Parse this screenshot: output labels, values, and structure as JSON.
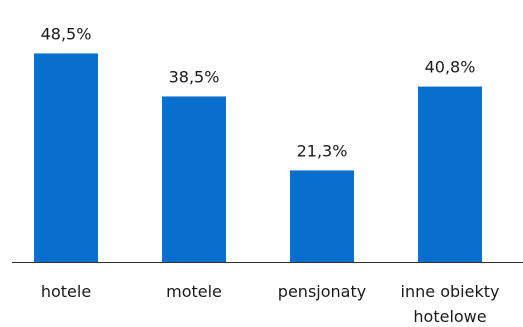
{
  "chart_data": {
    "type": "bar",
    "title": "",
    "xlabel": "",
    "ylabel": "",
    "categories": [
      "hotele",
      "motele",
      "pensjonaty",
      "inne obiekty hotelowe"
    ],
    "category_lines": [
      [
        "hotele"
      ],
      [
        "motele"
      ],
      [
        "pensjonaty"
      ],
      [
        "inne obiekty",
        "hotelowe"
      ]
    ],
    "values": [
      48.5,
      38.5,
      21.3,
      40.8
    ],
    "value_labels": [
      "48,5%",
      "38,5%",
      "21,3%",
      "40,8%"
    ],
    "ylim": [
      0,
      60
    ],
    "grid": false,
    "legend": "none",
    "bar_color": "#0a6fcc",
    "axis_color": "#333333"
  }
}
